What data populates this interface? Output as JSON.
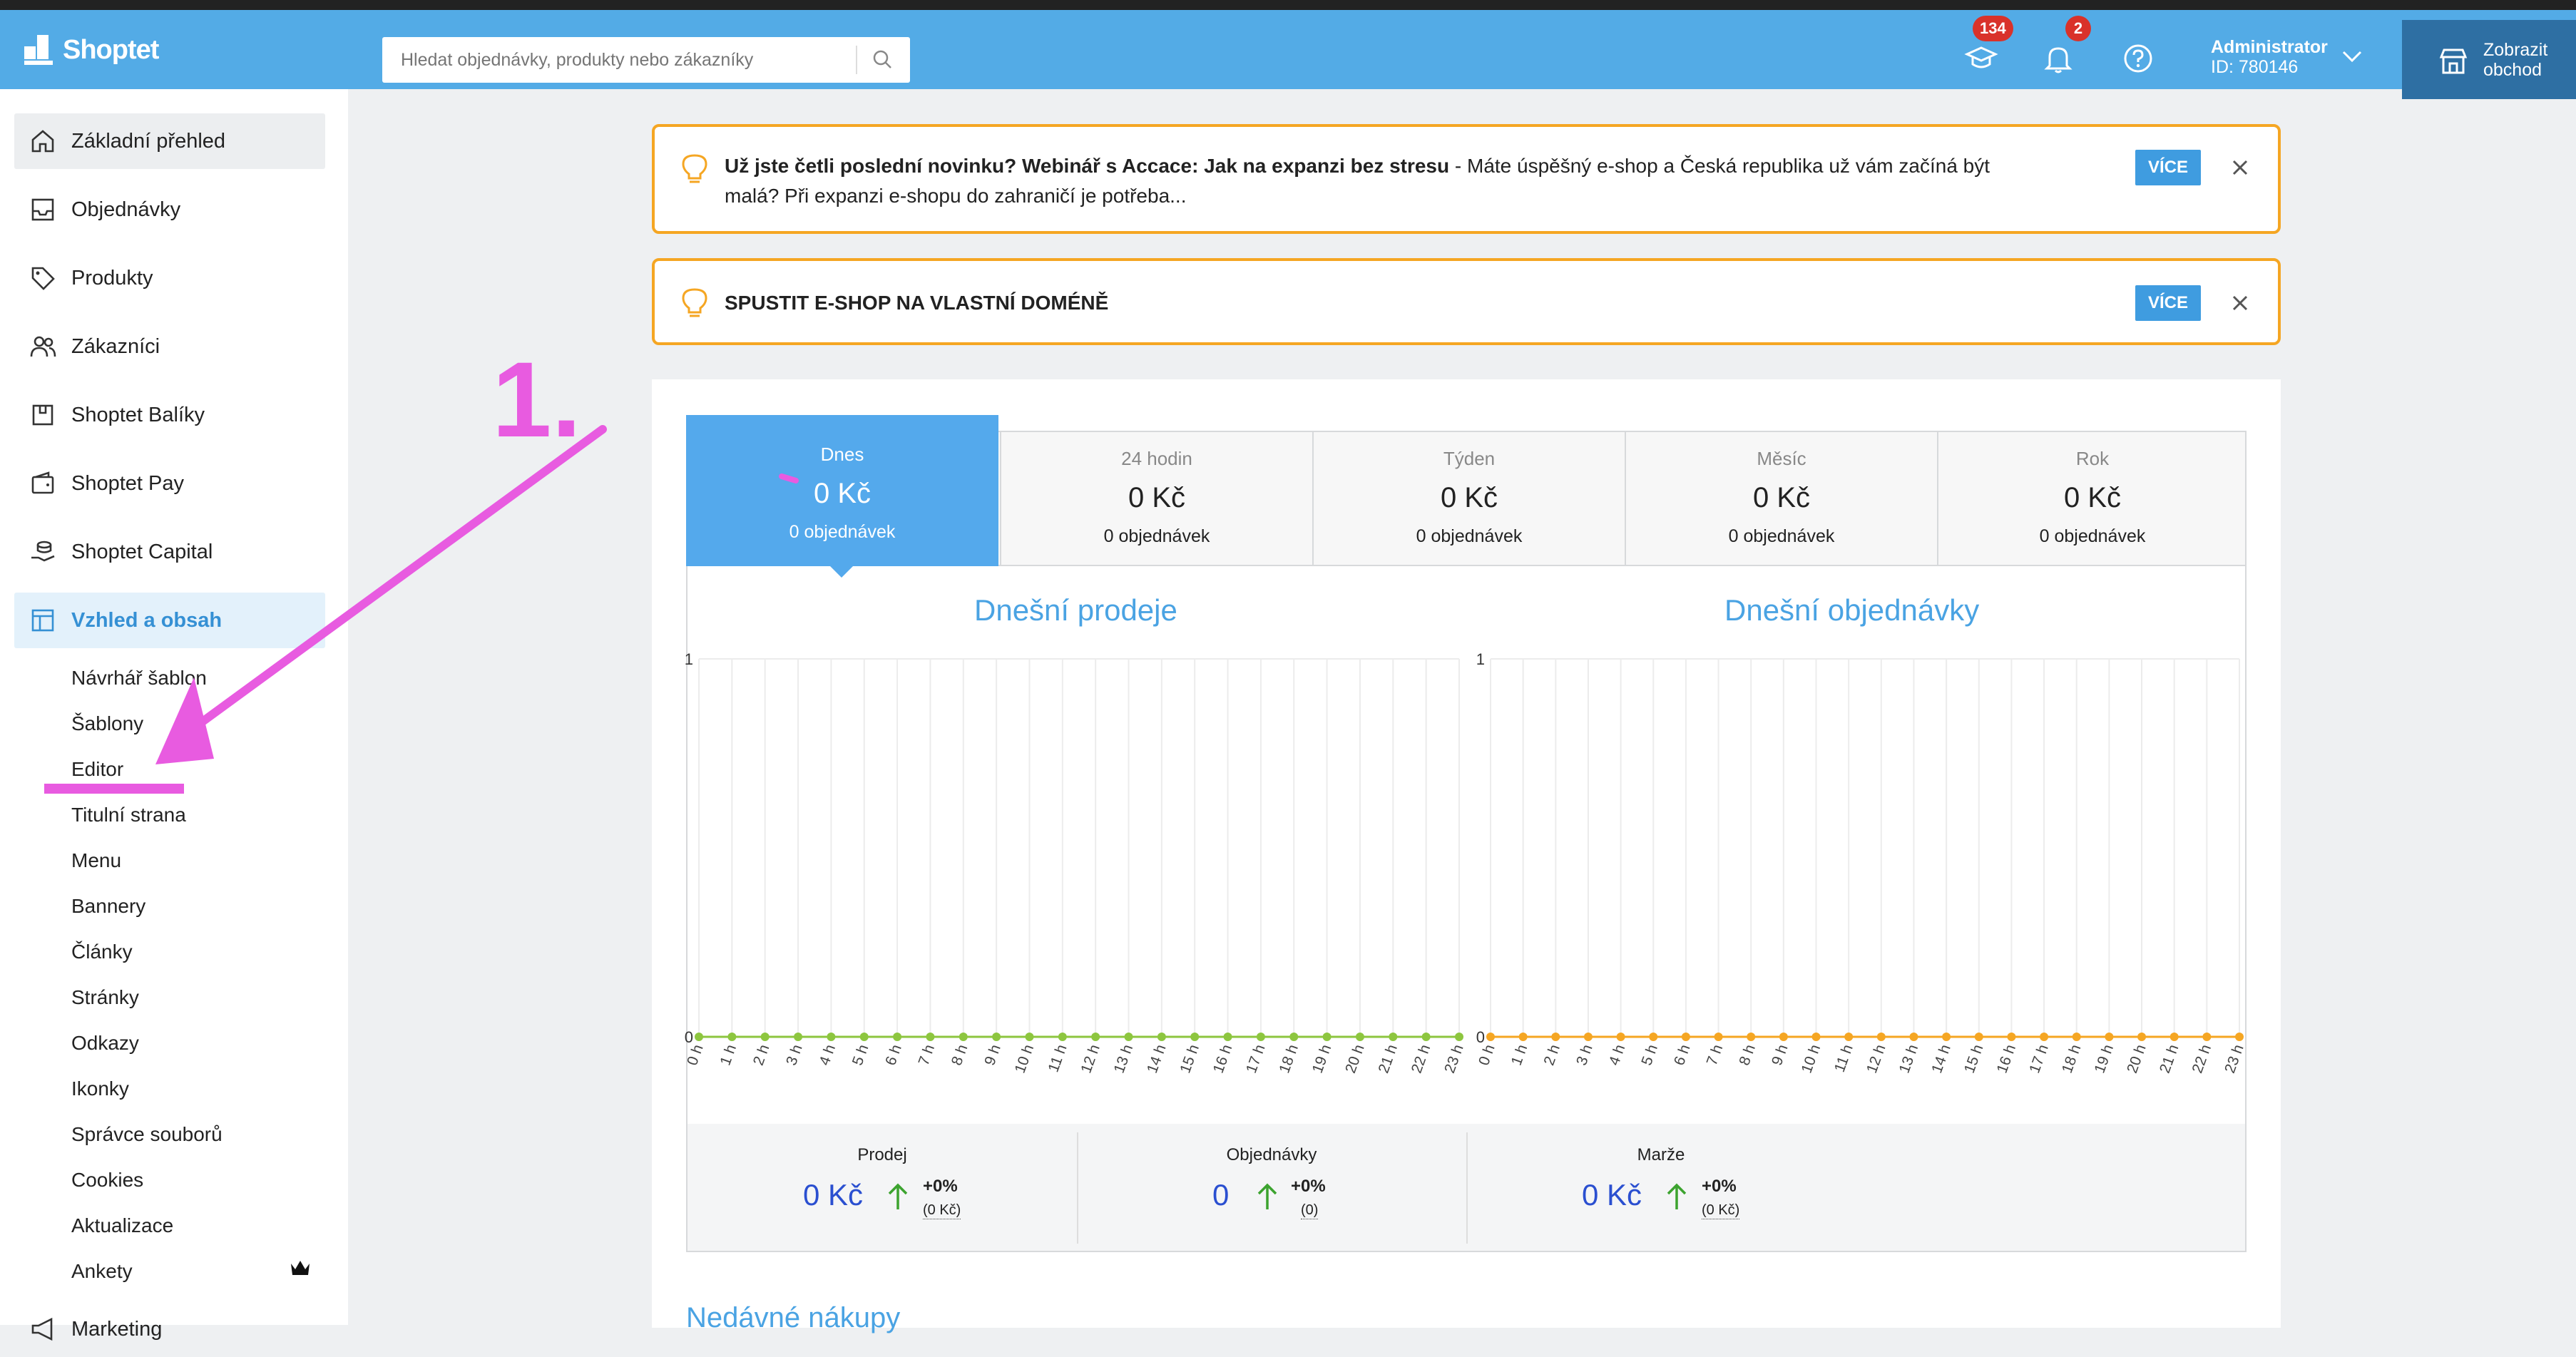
{
  "header": {
    "logo_text": "Shoptet",
    "search_placeholder": "Hledat objednávky, produkty nebo zákazníky",
    "education_badge": "134",
    "notification_badge": "2",
    "admin_name": "Administrator",
    "admin_id": "ID: 780146",
    "shop_button_line1": "Zobrazit",
    "shop_button_line2": "obchod"
  },
  "sidebar": {
    "items": [
      {
        "label": "Základní přehled",
        "icon": "home-icon"
      },
      {
        "label": "Objednávky",
        "icon": "inbox-icon"
      },
      {
        "label": "Produkty",
        "icon": "tag-icon"
      },
      {
        "label": "Zákazníci",
        "icon": "users-icon"
      },
      {
        "label": "Shoptet Balíky",
        "icon": "package-icon"
      },
      {
        "label": "Shoptet Pay",
        "icon": "wallet-icon"
      },
      {
        "label": "Shoptet Capital",
        "icon": "coins-icon"
      },
      {
        "label": "Vzhled a obsah",
        "icon": "layout-icon"
      }
    ],
    "subitems": [
      "Návrhář šablon",
      "Šablony",
      "Editor",
      "Titulní strana",
      "Menu",
      "Bannery",
      "Články",
      "Stránky",
      "Odkazy",
      "Ikonky",
      "Správce souborů",
      "Cookies",
      "Aktualizace",
      "Ankety"
    ],
    "next_item_partial": "Marketing"
  },
  "notices": {
    "first_bold": "Už jste četli poslední novinku? Webinář s Accace: Jak na expanzi bez stresu",
    "first_text_line1": " - Máte úspěšný e-shop a Česká republika už vám začíná být",
    "first_text_line2": "malá?  Při expanzi e-shopu do zahraničí je potřeba...",
    "second_title": "SPUSTIT E-SHOP NA VLASTNÍ DOMÉNĚ",
    "more_label": "VÍCE"
  },
  "stats_tabs": [
    {
      "label": "Dnes",
      "amount": "0 Kč",
      "orders": "0 objednávek",
      "active": true
    },
    {
      "label": "24 hodin",
      "amount": "0 Kč",
      "orders": "0 objednávek"
    },
    {
      "label": "Týden",
      "amount": "0 Kč",
      "orders": "0 objednávek"
    },
    {
      "label": "Měsíc",
      "amount": "0 Kč",
      "orders": "0 objednávek"
    },
    {
      "label": "Rok",
      "amount": "0 Kč",
      "orders": "0 objednávek"
    }
  ],
  "chart_data": [
    {
      "type": "line",
      "title": "Dnešní prodeje",
      "categories": [
        "0 h",
        "1 h",
        "2 h",
        "3 h",
        "4 h",
        "5 h",
        "6 h",
        "7 h",
        "8 h",
        "9 h",
        "10 h",
        "11 h",
        "12 h",
        "13 h",
        "14 h",
        "15 h",
        "16 h",
        "17 h",
        "18 h",
        "19 h",
        "20 h",
        "21 h",
        "22 h",
        "23 h"
      ],
      "series": [
        {
          "values": [
            0,
            0,
            0,
            0,
            0,
            0,
            0,
            0,
            0,
            0,
            0,
            0,
            0,
            0,
            0,
            0,
            0,
            0,
            0,
            0,
            0,
            0,
            0,
            0
          ],
          "color": "#8dc63f"
        }
      ],
      "ylim": [
        0,
        1
      ],
      "yticks": [
        "0",
        "1"
      ],
      "grid": true
    },
    {
      "type": "line",
      "title": "Dnešní objednávky",
      "categories": [
        "0 h",
        "1 h",
        "2 h",
        "3 h",
        "4 h",
        "5 h",
        "6 h",
        "7 h",
        "8 h",
        "9 h",
        "10 h",
        "11 h",
        "12 h",
        "13 h",
        "14 h",
        "15 h",
        "16 h",
        "17 h",
        "18 h",
        "19 h",
        "20 h",
        "21 h",
        "22 h",
        "23 h"
      ],
      "series": [
        {
          "values": [
            0,
            0,
            0,
            0,
            0,
            0,
            0,
            0,
            0,
            0,
            0,
            0,
            0,
            0,
            0,
            0,
            0,
            0,
            0,
            0,
            0,
            0,
            0,
            0
          ],
          "color": "#f5a623"
        }
      ],
      "ylim": [
        0,
        1
      ],
      "yticks": [
        "0",
        "1"
      ],
      "grid": true
    }
  ],
  "summary": [
    {
      "label": "Prodej",
      "value": "0 Kč",
      "change": "+0%",
      "sub": "(0 Kč)"
    },
    {
      "label": "Objednávky",
      "value": "0",
      "change": "+0%",
      "sub": "(0)"
    },
    {
      "label": "Marže",
      "value": "0 Kč",
      "change": "+0%",
      "sub": "(0 Kč)"
    }
  ],
  "recent_title": "Nedávné nákupy",
  "annotation": {
    "label": "1.",
    "color": "#e85be0"
  },
  "colors": {
    "header": "#53abe6",
    "accent": "#3f9ce0",
    "notice_border": "#f5a623",
    "sales_line": "#8dc63f",
    "orders_line": "#f5a623"
  }
}
